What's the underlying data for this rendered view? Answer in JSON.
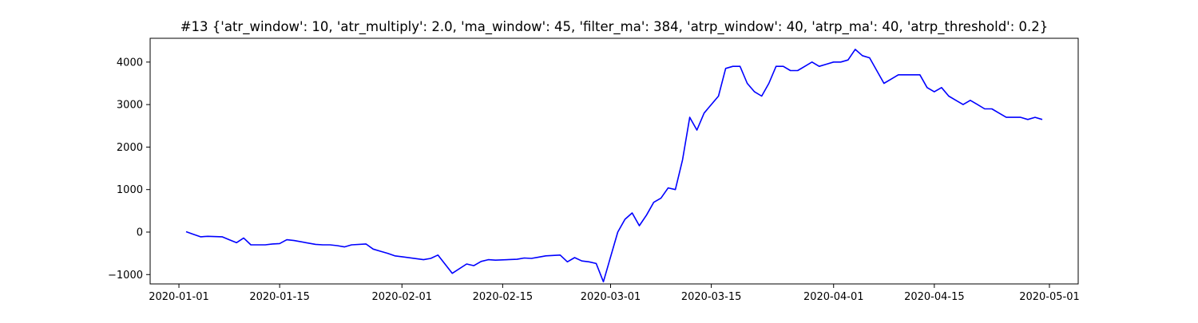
{
  "chart_data": {
    "type": "line",
    "title": "#13 {'atr_window': 10, 'atr_multiply': 2.0, 'ma_window': 45, 'filter_ma': 384, 'atrp_window': 40, 'atrp_ma': 40, 'atrp_threshold': 0.2}",
    "xlabel": "",
    "ylabel": "",
    "x_type": "date",
    "xlim": [
      "2019-12-28",
      "2020-05-05"
    ],
    "ylim": [
      -1220,
      4560
    ],
    "grid": false,
    "legend": "none",
    "x_ticks": [
      "2020-01-01",
      "2020-01-15",
      "2020-02-01",
      "2020-02-15",
      "2020-03-01",
      "2020-03-15",
      "2020-04-01",
      "2020-04-15",
      "2020-05-01"
    ],
    "y_ticks": [
      -1000,
      0,
      1000,
      2000,
      3000,
      4000
    ],
    "y_tick_labels": [
      "−1000",
      "0",
      "1000",
      "2000",
      "3000",
      "4000"
    ],
    "series": [
      {
        "color": "#0000ff",
        "x": [
          "2020-01-02",
          "2020-01-03",
          "2020-01-04",
          "2020-01-05",
          "2020-01-07",
          "2020-01-08",
          "2020-01-09",
          "2020-01-10",
          "2020-01-11",
          "2020-01-13",
          "2020-01-14",
          "2020-01-15",
          "2020-01-16",
          "2020-01-17",
          "2020-01-20",
          "2020-01-21",
          "2020-01-22",
          "2020-01-23",
          "2020-01-24",
          "2020-01-25",
          "2020-01-27",
          "2020-01-28",
          "2020-01-29",
          "2020-01-30",
          "2020-01-31",
          "2020-02-01",
          "2020-02-04",
          "2020-02-05",
          "2020-02-06",
          "2020-02-08",
          "2020-02-10",
          "2020-02-11",
          "2020-02-12",
          "2020-02-13",
          "2020-02-14",
          "2020-02-17",
          "2020-02-18",
          "2020-02-19",
          "2020-02-20",
          "2020-02-21",
          "2020-02-23",
          "2020-02-24",
          "2020-02-25",
          "2020-02-26",
          "2020-02-27",
          "2020-02-28",
          "2020-02-29",
          "2020-03-02",
          "2020-03-03",
          "2020-03-04",
          "2020-03-05",
          "2020-03-06",
          "2020-03-07",
          "2020-03-08",
          "2020-03-09",
          "2020-03-10",
          "2020-03-11",
          "2020-03-12",
          "2020-03-13",
          "2020-03-14",
          "2020-03-15",
          "2020-03-16",
          "2020-03-17",
          "2020-03-18",
          "2020-03-19",
          "2020-03-20",
          "2020-03-21",
          "2020-03-22",
          "2020-03-23",
          "2020-03-24",
          "2020-03-25",
          "2020-03-26",
          "2020-03-27",
          "2020-03-28",
          "2020-03-29",
          "2020-03-30",
          "2020-03-31",
          "2020-04-01",
          "2020-04-02",
          "2020-04-03",
          "2020-04-04",
          "2020-04-05",
          "2020-04-06",
          "2020-04-07",
          "2020-04-08",
          "2020-04-09",
          "2020-04-10",
          "2020-04-11",
          "2020-04-12",
          "2020-04-13",
          "2020-04-14",
          "2020-04-15",
          "2020-04-16",
          "2020-04-17",
          "2020-04-18",
          "2020-04-19",
          "2020-04-20",
          "2020-04-21",
          "2020-04-22",
          "2020-04-23",
          "2020-04-24",
          "2020-04-25",
          "2020-04-26",
          "2020-04-27",
          "2020-04-28",
          "2020-04-29",
          "2020-04-30"
        ],
        "y": [
          10,
          -50,
          -110,
          -100,
          -110,
          -180,
          -250,
          -140,
          -300,
          -300,
          -280,
          -270,
          -180,
          -200,
          -290,
          -300,
          -300,
          -320,
          -350,
          -300,
          -280,
          -400,
          -450,
          -500,
          -560,
          -580,
          -650,
          -620,
          -540,
          -970,
          -750,
          -790,
          -690,
          -650,
          -660,
          -640,
          -610,
          -620,
          -590,
          -560,
          -540,
          -700,
          -600,
          -680,
          -700,
          -740,
          -1170,
          0,
          300,
          450,
          150,
          400,
          700,
          800,
          1040,
          1000,
          1700,
          2700,
          2400,
          2800,
          3000,
          3200,
          3850,
          3900,
          3900,
          3500,
          3300,
          3200,
          3500,
          3900,
          3900,
          3800,
          3800,
          3900,
          4000,
          3900,
          3950,
          4000,
          4000,
          4050,
          4300,
          4150,
          4100,
          3800,
          3500,
          3600,
          3700,
          3700,
          3700,
          3700,
          3400,
          3300,
          3400,
          3200,
          3100,
          3000,
          3100,
          3000,
          2900,
          2900,
          2800,
          2700,
          2700,
          2700,
          2650,
          2700,
          2650
        ]
      }
    ]
  }
}
